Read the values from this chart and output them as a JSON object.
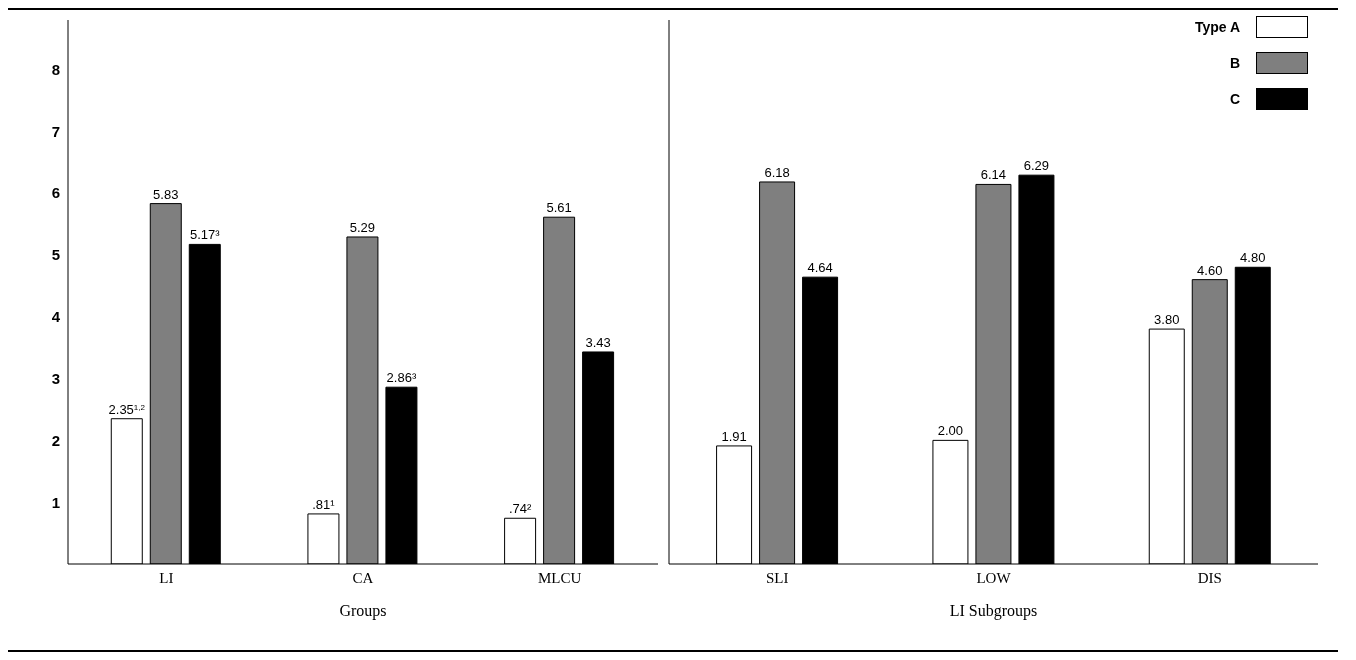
{
  "chart_data": [
    {
      "type": "bar",
      "xlabel": "Groups",
      "categories": [
        "LI",
        "CA",
        "MLCU"
      ],
      "ylim": [
        0,
        8.8
      ],
      "yticks": [
        1,
        2,
        3,
        4,
        5,
        6,
        7,
        8
      ],
      "legend": false,
      "data_labels": true,
      "series": [
        {
          "color": "#ffffff",
          "values": [
            2.35,
            0.81,
            0.74
          ],
          "value_labels": [
            "2.35$^{1,2}$",
            ".81¹",
            ".74²"
          ]
        },
        {
          "color": "#7f7f7f",
          "values": [
            5.83,
            5.29,
            5.61
          ],
          "value_labels": [
            "5.83",
            "5.29",
            "5.61"
          ]
        },
        {
          "color": "#000000",
          "values": [
            5.17,
            2.86,
            3.43
          ],
          "value_labels": [
            "5.17³",
            "2.86³",
            "3.43"
          ]
        }
      ]
    },
    {
      "type": "bar",
      "xlabel": "LI Subgroups",
      "categories": [
        "SLI",
        "LOW",
        "DIS"
      ],
      "ylim": [
        0,
        8.8
      ],
      "yticks": [
        1,
        2,
        3,
        4,
        5,
        6,
        7,
        8
      ],
      "tick_labels": "x",
      "legend": "top right",
      "data_labels": true,
      "series": [
        {
          "name": "Type A",
          "color": "#ffffff",
          "values": [
            1.91,
            2.0,
            3.8
          ],
          "value_labels": [
            "1.91",
            "2.00",
            "3.80"
          ]
        },
        {
          "name": "B",
          "color": "#7f7f7f",
          "values": [
            6.18,
            6.14,
            4.6
          ],
          "value_labels": [
            "6.18",
            "6.14",
            "4.60"
          ]
        },
        {
          "name": "C",
          "color": "#000000",
          "values": [
            4.64,
            6.29,
            4.8
          ],
          "value_labels": [
            "4.64",
            "6.29",
            "4.80"
          ]
        }
      ]
    }
  ]
}
